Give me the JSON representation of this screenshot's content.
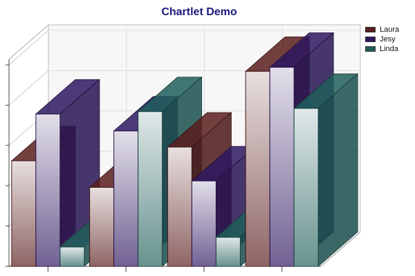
{
  "chart_data": {
    "type": "bar",
    "title": "Chartlet Demo",
    "categories": [
      "",
      "",
      "",
      ""
    ],
    "series": [
      {
        "name": "Laura",
        "color": "#5a1d1d",
        "values": [
          131,
          98,
          148,
          242
        ]
      },
      {
        "name": "Jesy",
        "color": "#2e1760",
        "values": [
          189,
          168,
          106,
          247
        ]
      },
      {
        "name": "Linda",
        "color": "#1f5e5a",
        "values": [
          24,
          192,
          36,
          196
        ]
      }
    ],
    "ylim": [
      0,
      250
    ],
    "yticks": [
      0,
      50,
      100,
      150,
      200,
      250
    ],
    "grid": true,
    "legend_position": "top-right",
    "style": "3d-bar"
  }
}
